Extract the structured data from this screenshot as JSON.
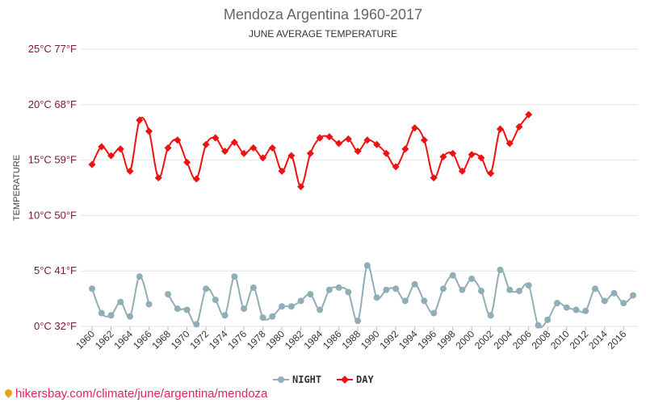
{
  "chart_data": {
    "type": "line",
    "title": "Mendoza Argentina 1960-2017",
    "subtitle": "JUNE AVERAGE TEMPERATURE",
    "ylabel": "TEMPERATURE",
    "ylim": [
      0,
      25
    ],
    "yticks": [
      {
        "value": 0,
        "label": "0°C 32°F"
      },
      {
        "value": 5,
        "label": "5°C 41°F"
      },
      {
        "value": 10,
        "label": "10°C 50°F"
      },
      {
        "value": 15,
        "label": "15°C 59°F"
      },
      {
        "value": 20,
        "label": "20°C 68°F"
      },
      {
        "value": 25,
        "label": "25°C 77°F"
      }
    ],
    "xlim": [
      1960,
      2017
    ],
    "xticks": [
      1960,
      1962,
      1964,
      1966,
      1968,
      1970,
      1972,
      1974,
      1976,
      1978,
      1980,
      1982,
      1984,
      1986,
      1988,
      1990,
      1992,
      1994,
      1996,
      1998,
      2000,
      2002,
      2004,
      2006,
      2008,
      2010,
      2012,
      2014,
      2016
    ],
    "grid": true,
    "legend": "bottom-center",
    "series": [
      {
        "name": "NIGHT",
        "color": "#90aeb5",
        "marker": "circle",
        "points": [
          [
            1960,
            3.4
          ],
          [
            1961,
            1.2
          ],
          [
            1962,
            1.0
          ],
          [
            1963,
            2.2
          ],
          [
            1964,
            0.9
          ],
          [
            1965,
            4.5
          ],
          [
            1966,
            2.0
          ],
          [
            1968,
            2.9
          ],
          [
            1969,
            1.6
          ],
          [
            1970,
            1.5
          ],
          [
            1971,
            0.2
          ],
          [
            1972,
            3.4
          ],
          [
            1973,
            2.4
          ],
          [
            1974,
            1.0
          ],
          [
            1975,
            4.5
          ],
          [
            1976,
            1.6
          ],
          [
            1977,
            3.5
          ],
          [
            1978,
            0.8
          ],
          [
            1979,
            0.9
          ],
          [
            1980,
            1.8
          ],
          [
            1981,
            1.8
          ],
          [
            1982,
            2.3
          ],
          [
            1983,
            2.9
          ],
          [
            1984,
            1.5
          ],
          [
            1985,
            3.3
          ],
          [
            1986,
            3.5
          ],
          [
            1987,
            3.1
          ],
          [
            1988,
            0.5
          ],
          [
            1989,
            5.5
          ],
          [
            1990,
            2.6
          ],
          [
            1991,
            3.3
          ],
          [
            1992,
            3.4
          ],
          [
            1993,
            2.3
          ],
          [
            1994,
            3.8
          ],
          [
            1995,
            2.3
          ],
          [
            1996,
            1.2
          ],
          [
            1997,
            3.4
          ],
          [
            1998,
            4.6
          ],
          [
            1999,
            3.3
          ],
          [
            2000,
            4.3
          ],
          [
            2001,
            3.2
          ],
          [
            2002,
            1.0
          ],
          [
            2003,
            5.1
          ],
          [
            2004,
            3.3
          ],
          [
            2005,
            3.2
          ],
          [
            2006,
            3.7
          ],
          [
            2007,
            0.1
          ],
          [
            2008,
            0.6
          ],
          [
            2009,
            2.1
          ],
          [
            2010,
            1.7
          ],
          [
            2011,
            1.5
          ],
          [
            2012,
            1.4
          ],
          [
            2013,
            3.4
          ],
          [
            2014,
            2.3
          ],
          [
            2015,
            3.0
          ],
          [
            2016,
            2.1
          ],
          [
            2017,
            2.8
          ]
        ]
      },
      {
        "name": "DAY",
        "color": "#ee1111",
        "marker": "diamond",
        "points": [
          [
            1960,
            14.6
          ],
          [
            1961,
            16.2
          ],
          [
            1962,
            15.4
          ],
          [
            1963,
            16.0
          ],
          [
            1964,
            14.0
          ],
          [
            1965,
            18.6
          ],
          [
            1966,
            17.6
          ],
          [
            1967,
            13.4
          ],
          [
            1968,
            16.1
          ],
          [
            1969,
            16.8
          ],
          [
            1970,
            14.8
          ],
          [
            1971,
            13.3
          ],
          [
            1972,
            16.4
          ],
          [
            1973,
            17.0
          ],
          [
            1974,
            15.8
          ],
          [
            1975,
            16.6
          ],
          [
            1976,
            15.6
          ],
          [
            1977,
            16.1
          ],
          [
            1978,
            15.2
          ],
          [
            1979,
            16.1
          ],
          [
            1980,
            14.0
          ],
          [
            1981,
            15.4
          ],
          [
            1982,
            12.6
          ],
          [
            1983,
            15.6
          ],
          [
            1984,
            17.0
          ],
          [
            1985,
            17.1
          ],
          [
            1986,
            16.5
          ],
          [
            1987,
            16.9
          ],
          [
            1988,
            15.8
          ],
          [
            1989,
            16.8
          ],
          [
            1990,
            16.4
          ],
          [
            1991,
            15.6
          ],
          [
            1992,
            14.4
          ],
          [
            1993,
            16.0
          ],
          [
            1994,
            17.9
          ],
          [
            1995,
            16.8
          ],
          [
            1996,
            13.4
          ],
          [
            1997,
            15.3
          ],
          [
            1998,
            15.6
          ],
          [
            1999,
            14.0
          ],
          [
            2000,
            15.5
          ],
          [
            2001,
            15.2
          ],
          [
            2002,
            13.8
          ],
          [
            2003,
            17.8
          ],
          [
            2004,
            16.5
          ],
          [
            2005,
            18.0
          ],
          [
            2006,
            19.1
          ]
        ]
      }
    ]
  },
  "footer": {
    "url": "hikersbay.com/climate/june/argentina/mendoza"
  }
}
